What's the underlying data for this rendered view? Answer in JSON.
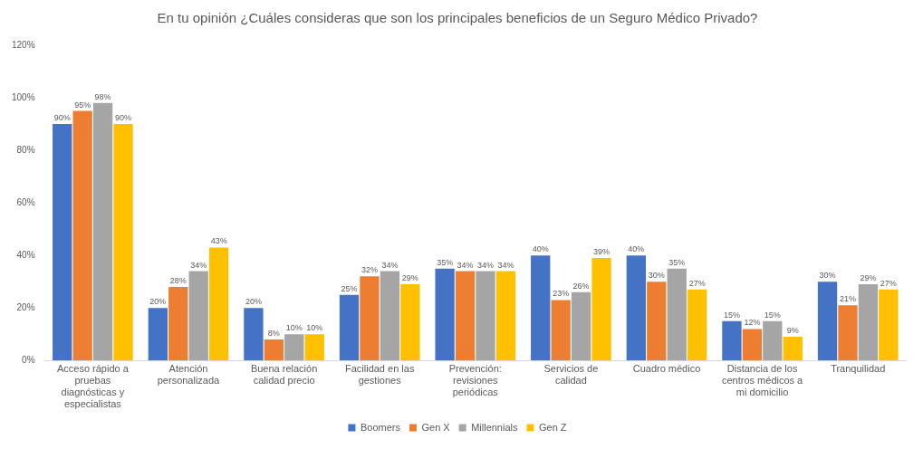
{
  "chart_data": {
    "type": "bar",
    "title": "En tu opinión ¿Cuáles consideras que son los principales beneficios de un Seguro Médico Privado?",
    "categories": [
      "Acceso rápido a pruebas diagnósticas y especialistas",
      "Atención personalizada",
      "Buena relación calidad precio",
      "Facilidad en las gestiones",
      "Prevención: revisiones periódicas",
      "Servicios de calidad",
      "Cuadro médico",
      "Distancia de los centros médicos a mi domicilio",
      "Tranquilidad"
    ],
    "series": [
      {
        "name": "Boomers",
        "color": "#4472c4",
        "values": [
          90,
          20,
          20,
          25,
          35,
          40,
          40,
          15,
          30
        ],
        "value_labels": [
          "90%",
          "20%",
          "20%",
          "25%",
          "35%",
          "40%",
          "40%",
          "15%",
          "30%"
        ]
      },
      {
        "name": "Gen X",
        "color": "#ed7d31",
        "values": [
          95,
          28,
          8,
          32,
          34,
          23,
          30,
          12,
          21
        ],
        "value_labels": [
          "95%",
          "28%",
          "8%",
          "32%",
          "34%",
          "23%",
          "30%",
          "12%",
          "21%"
        ]
      },
      {
        "name": "Millennials",
        "color": "#a5a5a5",
        "values": [
          98,
          34,
          10,
          34,
          34,
          26,
          35,
          15,
          29
        ],
        "value_labels": [
          "98%",
          "34%",
          "10%",
          "34%",
          "34%",
          "26%",
          "35%",
          "15%",
          "29%"
        ]
      },
      {
        "name": "Gen Z",
        "color": "#ffc000",
        "values": [
          90,
          43,
          10,
          29,
          34,
          39,
          27,
          9,
          27
        ],
        "value_labels": [
          "90%",
          "43%",
          "10%",
          "29%",
          "34%",
          "39%",
          "27%",
          "9%",
          "27%"
        ]
      }
    ],
    "ylim": [
      0,
      120
    ],
    "yticks": [
      {
        "value": 0,
        "label": "0%"
      },
      {
        "value": 20,
        "label": "20%"
      },
      {
        "value": 40,
        "label": "40%"
      },
      {
        "value": 60,
        "label": "60%"
      },
      {
        "value": 80,
        "label": "80%"
      },
      {
        "value": 100,
        "label": "100%"
      },
      {
        "value": 120,
        "label": "120%"
      }
    ],
    "grid": false,
    "legend": "bottom"
  }
}
